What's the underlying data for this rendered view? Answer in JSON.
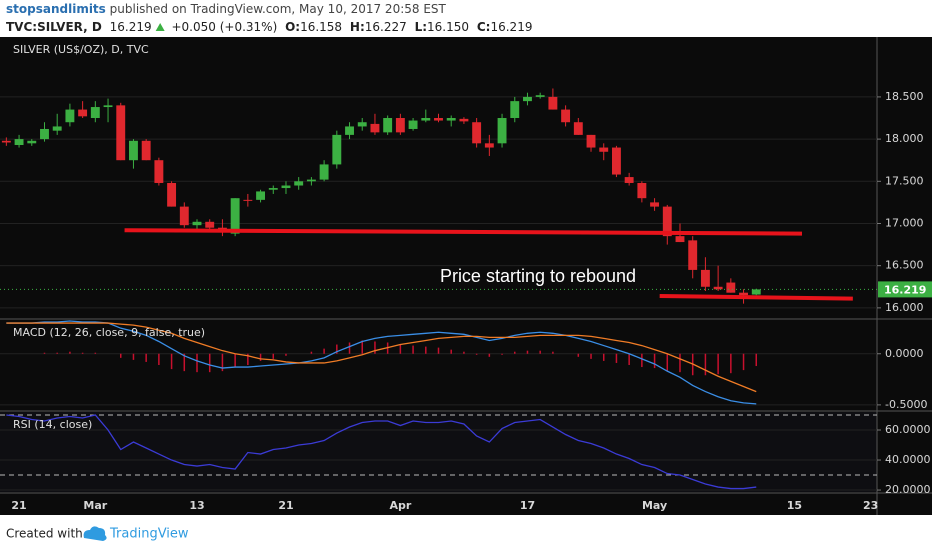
{
  "header": {
    "author": "stopsandlimits",
    "published": "published on TradingView.com, May 10, 2017 20:58 EST",
    "symbol": "TVC:SILVER, D",
    "price": "16.219",
    "change": "+0.050 (+0.31%)",
    "o_label": "O:",
    "open": "16.158",
    "h_label": "H:",
    "high": "16.227",
    "l_label": "L:",
    "low": "16.150",
    "c_label": "C:",
    "close": "16.219"
  },
  "footer": {
    "created": "Created with",
    "brand": "TradingView"
  },
  "chart_data": [
    {
      "type": "candlestick",
      "title": "SILVER (US$/OZ), D, TVC",
      "categories": [
        null,
        "21",
        null,
        null,
        null,
        null,
        null,
        "Mar",
        null,
        null,
        null,
        null,
        null,
        null,
        null,
        "13",
        null,
        null,
        null,
        null,
        null,
        null,
        "21",
        null,
        null,
        null,
        null,
        null,
        null,
        null,
        null,
        "Apr",
        null,
        null,
        null,
        null,
        null,
        null,
        null,
        null,
        null,
        "17",
        null,
        null,
        null,
        null,
        null,
        null,
        null,
        null,
        null,
        "May",
        null,
        null,
        null,
        null,
        null,
        null,
        null,
        null,
        null,
        null,
        "15",
        null,
        null,
        null,
        null,
        null,
        "23"
      ],
      "ohlc": [
        [
          17.98,
          18.02,
          17.92,
          17.96
        ],
        [
          17.93,
          18.05,
          17.9,
          18.0
        ],
        [
          17.95,
          18.0,
          17.92,
          17.98
        ],
        [
          18.0,
          18.2,
          17.97,
          18.12
        ],
        [
          18.1,
          18.3,
          18.05,
          18.15
        ],
        [
          18.2,
          18.42,
          18.15,
          18.35
        ],
        [
          18.35,
          18.45,
          18.25,
          18.27
        ],
        [
          18.25,
          18.45,
          18.2,
          18.38
        ],
        [
          18.38,
          18.48,
          18.2,
          18.4
        ],
        [
          18.4,
          18.43,
          17.75,
          17.75
        ],
        [
          17.75,
          18.0,
          17.65,
          17.98
        ],
        [
          17.98,
          18.0,
          17.75,
          17.75
        ],
        [
          17.75,
          17.78,
          17.45,
          17.48
        ],
        [
          17.48,
          17.5,
          17.2,
          17.2
        ],
        [
          17.2,
          17.25,
          16.95,
          16.98
        ],
        [
          16.98,
          17.05,
          16.9,
          17.02
        ],
        [
          17.02,
          17.05,
          16.9,
          16.95
        ],
        [
          16.95,
          17.05,
          16.85,
          16.9
        ],
        [
          16.88,
          17.3,
          16.85,
          17.3
        ],
        [
          17.28,
          17.35,
          17.2,
          17.27
        ],
        [
          17.28,
          17.4,
          17.25,
          17.38
        ],
        [
          17.4,
          17.45,
          17.35,
          17.42
        ],
        [
          17.42,
          17.5,
          17.35,
          17.45
        ],
        [
          17.45,
          17.55,
          17.4,
          17.5
        ],
        [
          17.5,
          17.55,
          17.45,
          17.52
        ],
        [
          17.52,
          17.75,
          17.5,
          17.7
        ],
        [
          17.7,
          18.1,
          17.65,
          18.05
        ],
        [
          18.05,
          18.2,
          18.0,
          18.15
        ],
        [
          18.15,
          18.25,
          18.1,
          18.2
        ],
        [
          18.18,
          18.3,
          18.05,
          18.08
        ],
        [
          18.08,
          18.28,
          18.05,
          18.25
        ],
        [
          18.25,
          18.3,
          18.05,
          18.08
        ],
        [
          18.12,
          18.25,
          18.1,
          18.22
        ],
        [
          18.22,
          18.35,
          18.2,
          18.25
        ],
        [
          18.25,
          18.3,
          18.2,
          18.22
        ],
        [
          18.22,
          18.28,
          18.15,
          18.25
        ],
        [
          18.24,
          18.26,
          18.18,
          18.21
        ],
        [
          18.2,
          18.25,
          17.9,
          17.95
        ],
        [
          17.95,
          18.05,
          17.8,
          17.9
        ],
        [
          17.95,
          18.3,
          17.9,
          18.25
        ],
        [
          18.25,
          18.5,
          18.2,
          18.45
        ],
        [
          18.45,
          18.55,
          18.4,
          18.5
        ],
        [
          18.5,
          18.55,
          18.48,
          18.52
        ],
        [
          18.5,
          18.6,
          18.35,
          18.35
        ],
        [
          18.35,
          18.4,
          18.15,
          18.2
        ],
        [
          18.2,
          18.25,
          18.05,
          18.05
        ],
        [
          18.05,
          18.05,
          17.85,
          17.9
        ],
        [
          17.9,
          17.95,
          17.75,
          17.85
        ],
        [
          17.9,
          17.92,
          17.55,
          17.58
        ],
        [
          17.55,
          17.6,
          17.45,
          17.48
        ],
        [
          17.48,
          17.5,
          17.25,
          17.3
        ],
        [
          17.25,
          17.3,
          17.15,
          17.2
        ],
        [
          17.2,
          17.22,
          16.75,
          16.85
        ],
        [
          16.85,
          17.0,
          16.78,
          16.78
        ],
        [
          16.8,
          16.85,
          16.35,
          16.45
        ],
        [
          16.45,
          16.6,
          16.2,
          16.25
        ],
        [
          16.25,
          16.5,
          16.2,
          16.22
        ],
        [
          16.3,
          16.35,
          16.18,
          16.18
        ],
        [
          16.18,
          16.22,
          16.05,
          16.15
        ],
        [
          16.158,
          16.227,
          16.15,
          16.219
        ],
        null,
        null,
        null,
        null,
        null,
        null,
        null,
        null,
        null
      ],
      "up_color": "#3cb043",
      "down_color": "#e0282e",
      "ylim": [
        15.88,
        19.21
      ],
      "yticks": [
        {
          "value": 16,
          "label": "16.000"
        },
        {
          "value": 16.5,
          "label": "16.500"
        },
        {
          "value": 17,
          "label": "17.000"
        },
        {
          "value": 17.5,
          "label": "17.500"
        },
        {
          "value": 18,
          "label": "18.000"
        },
        {
          "value": 18.5,
          "label": "18.500"
        }
      ],
      "grid": true,
      "last_price": 16.219,
      "last_color": "#3cb043",
      "lines": [
        {
          "color": "#e8131b",
          "x": [
            9.3,
            62.6
          ],
          "values": [
            16.92,
            16.88
          ]
        },
        {
          "color": "#e8131b",
          "x": [
            51.4,
            66.6
          ],
          "values": [
            16.14,
            16.11
          ]
        }
      ],
      "annotation": "Price starting to rebound"
    },
    {
      "type": "line",
      "title": "MACD (12, 26, close, 9, false, true)",
      "ylim": [
        -0.55,
        0.33
      ],
      "yticks": [
        {
          "value": 0,
          "label": "0.0000"
        },
        {
          "value": -0.5,
          "label": "-0.5000"
        }
      ],
      "grid": true,
      "series": [
        {
          "type": "bar",
          "color": "#c8102e",
          "values": [
            0,
            0,
            0,
            0.01,
            0.01,
            0.02,
            0.01,
            0.01,
            0,
            -0.04,
            -0.06,
            -0.08,
            -0.11,
            -0.15,
            -0.17,
            -0.18,
            -0.18,
            -0.17,
            -0.13,
            -0.11,
            -0.07,
            -0.05,
            -0.02,
            0,
            0.02,
            0.05,
            0.09,
            0.11,
            0.13,
            0.12,
            0.11,
            0.09,
            0.08,
            0.07,
            0.06,
            0.04,
            0.02,
            -0.01,
            -0.03,
            -0.01,
            0.02,
            0.03,
            0.03,
            0.02,
            0,
            -0.03,
            -0.05,
            -0.07,
            -0.09,
            -0.11,
            -0.13,
            -0.14,
            -0.17,
            -0.18,
            -0.21,
            -0.21,
            -0.2,
            -0.19,
            -0.16,
            -0.12,
            null,
            null,
            null,
            null,
            null,
            null,
            null,
            null,
            null
          ]
        },
        {
          "type": "line",
          "color": "#3a8ee6",
          "values": [
            0.3,
            0.3,
            0.3,
            0.31,
            0.31,
            0.32,
            0.31,
            0.31,
            0.3,
            0.25,
            0.22,
            0.18,
            0.12,
            0.05,
            -0.02,
            -0.07,
            -0.11,
            -0.14,
            -0.13,
            -0.13,
            -0.12,
            -0.11,
            -0.1,
            -0.09,
            -0.07,
            -0.04,
            0.02,
            0.07,
            0.12,
            0.15,
            0.17,
            0.18,
            0.19,
            0.2,
            0.21,
            0.2,
            0.19,
            0.16,
            0.13,
            0.15,
            0.18,
            0.2,
            0.21,
            0.2,
            0.18,
            0.15,
            0.12,
            0.08,
            0.04,
            0,
            -0.05,
            -0.1,
            -0.17,
            -0.23,
            -0.31,
            -0.37,
            -0.42,
            -0.46,
            -0.48,
            -0.49,
            null,
            null,
            null,
            null,
            null,
            null,
            null,
            null,
            null
          ]
        },
        {
          "type": "line",
          "color": "#f07c26",
          "values": [
            0.3,
            0.3,
            0.3,
            0.3,
            0.3,
            0.3,
            0.3,
            0.3,
            0.3,
            0.29,
            0.28,
            0.26,
            0.23,
            0.2,
            0.15,
            0.11,
            0.07,
            0.03,
            0,
            -0.02,
            -0.05,
            -0.06,
            -0.08,
            -0.09,
            -0.09,
            -0.09,
            -0.07,
            -0.04,
            -0.01,
            0.03,
            0.06,
            0.09,
            0.11,
            0.13,
            0.15,
            0.16,
            0.17,
            0.17,
            0.16,
            0.16,
            0.16,
            0.17,
            0.18,
            0.18,
            0.18,
            0.18,
            0.17,
            0.15,
            0.13,
            0.11,
            0.08,
            0.04,
            0,
            -0.05,
            -0.1,
            -0.16,
            -0.22,
            -0.27,
            -0.32,
            -0.37,
            null,
            null,
            null,
            null,
            null,
            null,
            null,
            null,
            null
          ]
        }
      ]
    },
    {
      "type": "line",
      "title": "RSI (14, close)",
      "ylim": [
        18.7,
        72
      ],
      "yticks": [
        {
          "value": 60,
          "label": "60.0000"
        },
        {
          "value": 40,
          "label": "40.0000"
        },
        {
          "value": 20,
          "label": "20.0000"
        }
      ],
      "grid": true,
      "levels": [
        70,
        30
      ],
      "series": [
        {
          "type": "line",
          "color": "#3b3bd6",
          "values": [
            70,
            69,
            67,
            66,
            68,
            69,
            68,
            70,
            60,
            47,
            52,
            48,
            44,
            40,
            37,
            36,
            37,
            35,
            34,
            45,
            44,
            47,
            48,
            50,
            51,
            53,
            58,
            62,
            65,
            66,
            66,
            63,
            66,
            65,
            65,
            66,
            64,
            56,
            52,
            61,
            65,
            66,
            67,
            62,
            57,
            53,
            51,
            48,
            44,
            41,
            37,
            35,
            31,
            30,
            27,
            24,
            22,
            21,
            21,
            22,
            null,
            null,
            null,
            null,
            null,
            null,
            null,
            null,
            null
          ]
        }
      ]
    }
  ]
}
